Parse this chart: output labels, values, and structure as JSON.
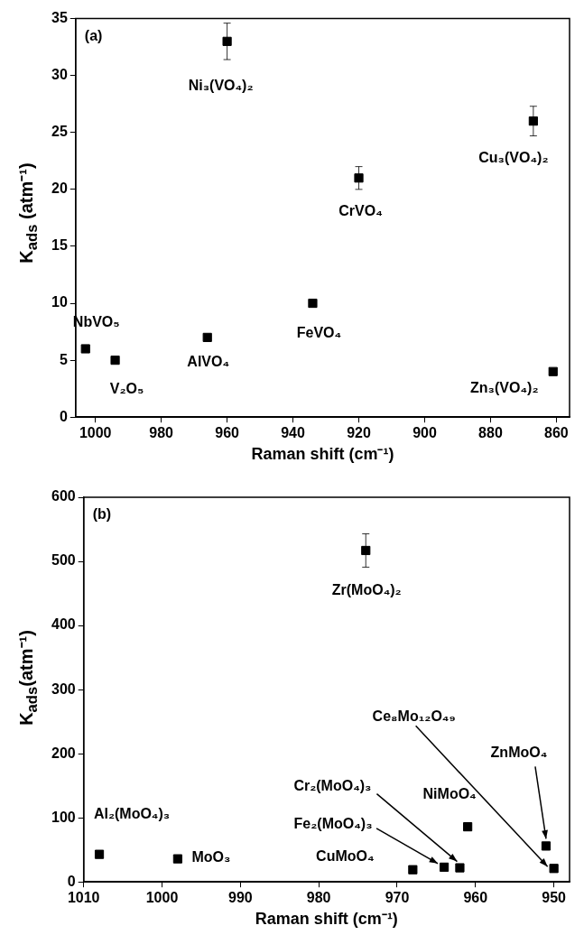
{
  "chart_data": [
    {
      "type": "scatter",
      "xlabel": "Raman shift (cm⁻¹)",
      "ylabel": "K$_{ads}$ (atm⁻¹)",
      "xlim": [
        1006,
        856
      ],
      "xticks": [
        1000,
        980,
        960,
        940,
        920,
        900,
        880,
        860
      ],
      "ylim": [
        0,
        35
      ],
      "yticks": [
        0,
        5,
        10,
        15,
        20,
        25,
        30,
        35
      ],
      "grid": false,
      "legend": false,
      "marker": "square",
      "series": [
        {
          "color": "#000000",
          "x": [
            1003,
            994,
            966,
            960,
            934,
            920,
            867,
            861
          ],
          "values": [
            6,
            5,
            7,
            33,
            10,
            21,
            26,
            4
          ],
          "errors": [
            null,
            null,
            null,
            1.6,
            null,
            1,
            1.3,
            null
          ]
        }
      ],
      "annotations": [
        "(a)",
        {
          "text": "NbVO₅",
          "x": 1003,
          "y": 6
        },
        {
          "text": "V₂O₅",
          "x": 994,
          "y": 5
        },
        {
          "text": "AlVO₄",
          "x": 966,
          "y": 7
        },
        {
          "text": "Ni₃(VO₄)₂",
          "x": 960,
          "y": 33
        },
        {
          "text": "FeVO₄",
          "x": 934,
          "y": 10
        },
        {
          "text": "CrVO₄",
          "x": 920,
          "y": 21
        },
        {
          "text": "Cu₃(VO₄)₂",
          "x": 867,
          "y": 26
        },
        {
          "text": "Zn₃(VO₄)₂",
          "x": 861,
          "y": 4
        }
      ]
    },
    {
      "type": "scatter",
      "xlabel": "Raman shift (cm⁻¹)",
      "ylabel": "K$_{ads}$(atm⁻¹)",
      "xlim": [
        1010,
        948
      ],
      "xticks": [
        1010,
        1000,
        990,
        980,
        970,
        960,
        950
      ],
      "ylim": [
        0,
        600
      ],
      "yticks": [
        0,
        100,
        200,
        300,
        400,
        500,
        600
      ],
      "grid": false,
      "legend": false,
      "marker": "square",
      "series": [
        {
          "color": "#000000",
          "x": [
            1008,
            998,
            974,
            968,
            964,
            962,
            961,
            951,
            950
          ],
          "values": [
            43,
            36,
            517,
            19,
            23,
            22,
            86,
            56,
            21
          ],
          "errors": [
            null,
            null,
            26,
            null,
            null,
            null,
            null,
            null,
            null
          ]
        }
      ],
      "annotations": [
        "(b)",
        {
          "text": "Al₂(MoO₄)₃",
          "x": 1008,
          "y": 43
        },
        {
          "text": "MoO₃",
          "x": 998,
          "y": 36
        },
        {
          "text": "Zr(MoO₄)₂",
          "x": 974,
          "y": 517
        },
        {
          "text": "CuMoO₄",
          "x": 968,
          "y": 19
        },
        {
          "text": "Fe₂(MoO₄)₃",
          "x": 964,
          "y": 23
        },
        {
          "text": "Cr₂(MoO₄)₃",
          "x": 962,
          "y": 22
        },
        {
          "text": "NiMoO₄",
          "x": 961,
          "y": 86
        },
        {
          "text": "ZnMoO₄",
          "x": 951,
          "y": 56
        },
        {
          "text": "Ce₈Mo₁₂O₄₉",
          "x": 950,
          "y": 21
        }
      ]
    }
  ]
}
